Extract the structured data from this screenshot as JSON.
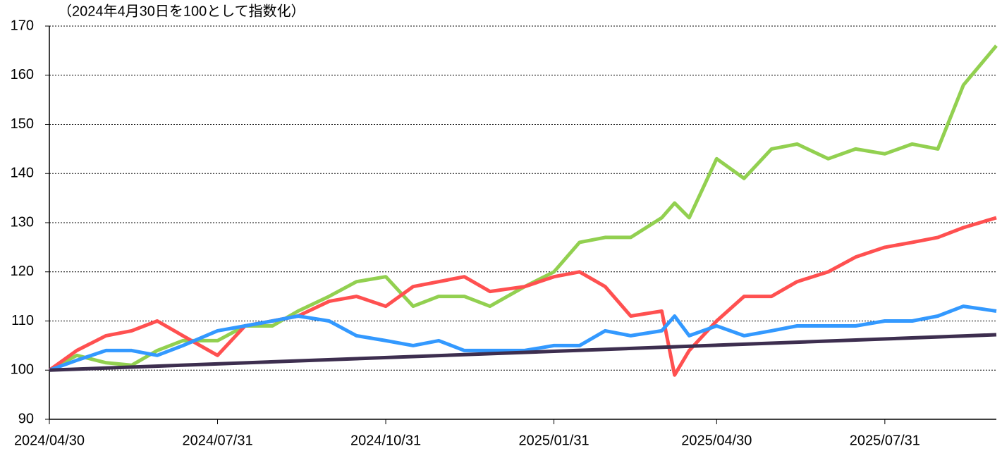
{
  "chart_data": {
    "type": "line",
    "subtitle": "（2024年4月30日を100として指数化）",
    "x": [
      "2024/04/30",
      "2024/05/15",
      "2024/05/31",
      "2024/06/14",
      "2024/06/28",
      "2024/07/12",
      "2024/07/31",
      "2024/08/15",
      "2024/08/30",
      "2024/09/13",
      "2024/09/30",
      "2024/10/15",
      "2024/10/31",
      "2024/11/15",
      "2024/11/29",
      "2024/12/13",
      "2024/12/27",
      "2025/01/15",
      "2025/01/31",
      "2025/02/14",
      "2025/02/28",
      "2025/03/14",
      "2025/03/31",
      "2025/04/07",
      "2025/04/15",
      "2025/04/30",
      "2025/05/15",
      "2025/05/30",
      "2025/06/13",
      "2025/06/30",
      "2025/07/15",
      "2025/07/31",
      "2025/08/15",
      "2025/08/29",
      "2025/09/12",
      "2025/09/30"
    ],
    "series": [
      {
        "color": "#92d050",
        "values": [
          100,
          103,
          101.5,
          101,
          104,
          106,
          106,
          109,
          109,
          112,
          115,
          118,
          119,
          113,
          115,
          115,
          113,
          117,
          120,
          126,
          127,
          127,
          131,
          134,
          131,
          143,
          139,
          145,
          146,
          143,
          145,
          144,
          146,
          145,
          158,
          166
        ]
      },
      {
        "color": "#ff5050",
        "values": [
          100,
          104,
          107,
          108,
          110,
          107,
          103,
          109,
          110,
          111,
          114,
          115,
          113,
          117,
          118,
          119,
          116,
          117,
          119,
          120,
          117,
          111,
          112,
          99,
          104,
          110,
          115,
          115,
          118,
          120,
          123,
          125,
          126,
          127,
          129,
          131
        ]
      },
      {
        "color": "#3399ff",
        "values": [
          100,
          102,
          104,
          104,
          103,
          105,
          108,
          109,
          110,
          111,
          110,
          107,
          106,
          105,
          106,
          104,
          104,
          104,
          105,
          105,
          108,
          107,
          108,
          111,
          107,
          109,
          107,
          108,
          109,
          109,
          109,
          110,
          110,
          111,
          113,
          112
        ]
      },
      {
        "color": "#3d2e4f",
        "x": [
          "2024/04/30",
          "2025/09/30"
        ],
        "values": [
          100,
          107.2
        ]
      }
    ],
    "xlim": [
      "2024/04/30",
      "2025/09/30"
    ],
    "xticks": [
      "2024/04/30",
      "2024/07/31",
      "2024/10/31",
      "2025/01/31",
      "2025/04/30",
      "2025/07/31"
    ],
    "ylim": [
      90,
      170
    ],
    "yticks": [
      90,
      100,
      110,
      120,
      130,
      140,
      150,
      160,
      170
    ],
    "grid": true
  }
}
